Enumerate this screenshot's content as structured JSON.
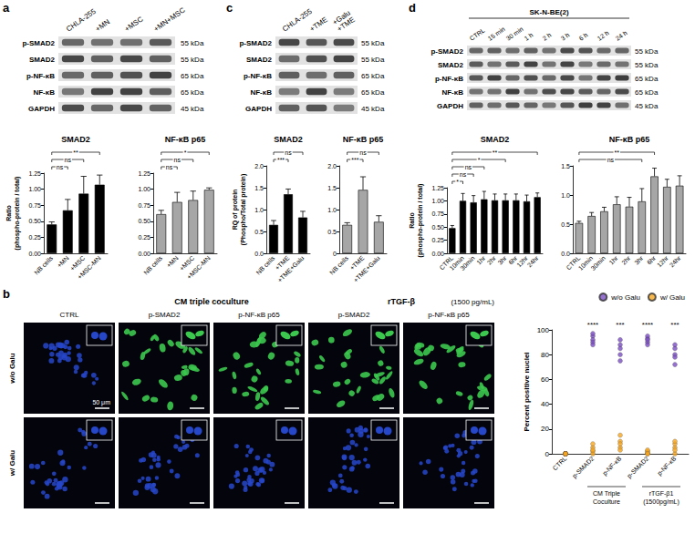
{
  "panel_letters": [
    "a",
    "b",
    "c",
    "d"
  ],
  "blots": [
    {
      "columns": [
        "CHLA-255",
        "+MN",
        "+MSC",
        "+MN+MSC"
      ],
      "rows": [
        {
          "label": "p-SMAD2",
          "size": "55 kDa"
        },
        {
          "label": "SMAD2",
          "size": "55 kDa"
        },
        {
          "label": "p-NF-κB",
          "size": "65 kDa"
        },
        {
          "label": "NF-κB",
          "size": "65 kDa"
        },
        {
          "label": "GAPDH",
          "size": "45 kDa"
        }
      ]
    },
    {
      "columns": [
        "CHLA-255",
        "+TME",
        "+TME\n+Galu"
      ],
      "rows": [
        {
          "label": "p-SMAD2",
          "size": "55 kDa"
        },
        {
          "label": "SMAD2",
          "size": "55 kDa"
        },
        {
          "label": "p-NF-κB",
          "size": "65 kDa"
        },
        {
          "label": "NF-κB",
          "size": "65 kDa"
        },
        {
          "label": "GAPDH",
          "size": "45 kDa"
        }
      ]
    },
    {
      "title": "SK-N-BE(2)",
      "columns": [
        "CTRL",
        "15 min",
        "30 min",
        "1 h",
        "2 h",
        "3 h",
        "6 h",
        "12 h",
        "24 h"
      ],
      "rows": [
        {
          "label": "p-SMAD2",
          "size": "55 kDa"
        },
        {
          "label": "SMAD2",
          "size": "55 kDa"
        },
        {
          "label": "p-NF-κB",
          "size": "65 kDa"
        },
        {
          "label": "NF-κB",
          "size": "65 kDa"
        },
        {
          "label": "GAPDH",
          "size": "45 kDa"
        }
      ]
    }
  ],
  "microscopy": {
    "control": "CTRL",
    "groups": [
      {
        "label": "CM triple coculture",
        "columns": [
          "p-SMAD2",
          "p-NF-κB p65"
        ]
      },
      {
        "label": "rTGF-β",
        "note": "(1500 pg/mL)",
        "columns": [
          "p-SMAD2",
          "p-NF-κB p65"
        ]
      }
    ],
    "rows": [
      "w/o Galu",
      "w/ Galu"
    ],
    "scale_bar": "50 μm"
  },
  "chart_data": [
    {
      "type": "bar",
      "title": "SMAD2",
      "ylabel": "Ratio\n(phospho-protein / total)",
      "categories": [
        "NB cells",
        "+MN",
        "+MSC",
        "+MSC-MN"
      ],
      "values": [
        0.45,
        0.67,
        0.93,
        1.07
      ],
      "errors": [
        0.04,
        0.17,
        0.27,
        0.15
      ],
      "color": "#000000",
      "grid": false,
      "ylim": [
        0,
        1.25
      ],
      "yticks": [
        {
          "value": 0,
          "label": "0.00"
        },
        0.25,
        {
          "value": 0.5,
          "label": "0.50"
        },
        0.75,
        {
          "value": 1,
          "label": "1.00"
        },
        1.25
      ],
      "annotations": [
        {
          "from": 0,
          "to": 1,
          "label": "ns"
        },
        {
          "from": 0,
          "to": 2,
          "label": "ns"
        },
        {
          "from": 0,
          "to": 3,
          "label": "**"
        }
      ]
    },
    {
      "type": "bar",
      "title": "NF-κB p65",
      "categories": [
        "NB cells",
        "+MN",
        "+MSC",
        "+MSC-MN"
      ],
      "values": [
        0.61,
        0.8,
        0.83,
        0.99
      ],
      "errors": [
        0.06,
        0.15,
        0.14,
        0.03
      ],
      "color": "#a6a6a6",
      "grid": false,
      "ylim": [
        0,
        1.25
      ],
      "yticks": [
        {
          "value": 0,
          "label": "0.00"
        },
        0.25,
        {
          "value": 0.5,
          "label": "0.50"
        },
        0.75,
        {
          "value": 1,
          "label": "1.00"
        },
        1.25
      ],
      "annotations": [
        {
          "from": 0,
          "to": 1,
          "label": "ns"
        },
        {
          "from": 0,
          "to": 2,
          "label": "ns"
        },
        {
          "from": 0,
          "to": 3,
          "label": "*"
        }
      ]
    },
    {
      "type": "bar",
      "title": "SMAD2",
      "ylabel": "RQ of protein\n(Phospho/Total protein)",
      "categories": [
        "NB cells",
        "+TME",
        "+TME+Galu"
      ],
      "values": [
        0.65,
        1.35,
        0.82
      ],
      "errors": [
        0.1,
        0.12,
        0.14
      ],
      "color": "#000000",
      "grid": false,
      "ylim": [
        0,
        2
      ],
      "yticks": [
        {
          "value": 0,
          "label": "0.0"
        },
        0.5,
        {
          "value": 1,
          "label": "1.0"
        },
        1.5,
        {
          "value": 2,
          "label": "2.0"
        }
      ],
      "annotations": [
        {
          "from": 0,
          "to": 1,
          "label": "***"
        },
        {
          "from": 0,
          "to": 2,
          "label": "ns"
        }
      ]
    },
    {
      "type": "bar",
      "title": "NF-κB p65",
      "categories": [
        "NB cells",
        "+TME",
        "+TME+Galu"
      ],
      "values": [
        0.65,
        1.45,
        0.72
      ],
      "errors": [
        0.05,
        0.3,
        0.14
      ],
      "color": "#a6a6a6",
      "grid": false,
      "ylim": [
        0,
        2
      ],
      "yticks": [
        0,
        0.5,
        {
          "value": 1,
          "label": "1.0"
        },
        1.5,
        {
          "value": 2,
          "label": "2.0"
        }
      ],
      "annotations": [
        {
          "from": 0,
          "to": 1,
          "label": "***"
        },
        {
          "from": 0,
          "to": 2,
          "label": "ns"
        }
      ]
    },
    {
      "type": "bar",
      "title": "SMAD2",
      "ylabel": "Ratio\n(phospho-protein / total)",
      "categories": [
        "CTRL",
        "10min",
        "30min",
        "1hr",
        "2hr",
        "3hr",
        "6hr",
        "12hr",
        "24hr"
      ],
      "values": [
        0.48,
        1.0,
        0.97,
        1.03,
        1.01,
        1.01,
        1.01,
        0.99,
        1.07
      ],
      "errors": [
        0.05,
        0.14,
        0.13,
        0.15,
        0.12,
        0.12,
        0.12,
        0.12,
        0.08
      ],
      "color": "#000000",
      "grid": false,
      "ylim": [
        0,
        1.25
      ],
      "yticks": [
        {
          "value": 0,
          "label": "0.00"
        },
        0.25,
        {
          "value": 0.5,
          "label": "0.50"
        },
        0.75,
        {
          "value": 1,
          "label": "1.00"
        },
        1.25
      ],
      "annotations": [
        {
          "from": 0,
          "to": 1,
          "label": "*"
        },
        {
          "from": 0,
          "to": 2,
          "label": "ns"
        },
        {
          "from": 0,
          "to": 3,
          "label": "ns"
        },
        {
          "from": 0,
          "to": 5,
          "label": "*"
        },
        {
          "from": 0,
          "to": 8,
          "label": "**"
        }
      ]
    },
    {
      "type": "bar",
      "title": "NF-κB p65",
      "categories": [
        "CTRL",
        "10min",
        "30min",
        "1hr",
        "2hr",
        "3hr",
        "6hr",
        "12hr",
        "24hr"
      ],
      "values": [
        0.52,
        0.64,
        0.72,
        0.84,
        0.8,
        0.89,
        1.32,
        1.14,
        1.16
      ],
      "errors": [
        0.03,
        0.06,
        0.07,
        0.13,
        0.16,
        0.22,
        0.14,
        0.13,
        0.17
      ],
      "color": "#a6a6a6",
      "grid": false,
      "ylim": [
        0,
        1.5
      ],
      "yticks": [
        {
          "value": 0,
          "label": "0.0"
        },
        0.5,
        {
          "value": 1,
          "label": "1.0"
        },
        1.5
      ],
      "annotations": [
        {
          "from": 0,
          "to": 5,
          "label": "ns"
        },
        {
          "from": 0,
          "to": 6,
          "label": "**"
        }
      ]
    },
    {
      "type": "scatter",
      "ylabel": "Percent positive nuclei",
      "categories": [
        "CTRL",
        "p-SMAD2",
        "p-NF-κB",
        "p-SMAD2",
        "p-NF-κB"
      ],
      "marker": "circle",
      "grid": false,
      "legend": "top-right",
      "ylim": [
        0,
        100
      ],
      "yticks": [
        0,
        20,
        40,
        60,
        80,
        100
      ],
      "series": [
        {
          "name": "w/o Galu",
          "color": "#7b4fc0",
          "values": [
            [
              0,
              0,
              0,
              0,
              0
            ],
            [
              95,
              92,
              90,
              97,
              88
            ],
            [
              88,
              85,
              80,
              92,
              75
            ],
            [
              93,
              90,
              95,
              88,
              92
            ],
            [
              85,
              80,
              78,
              72,
              88
            ]
          ]
        },
        {
          "name": "w/ Galu",
          "color": "#f5a623",
          "values": [
            [
              0,
              0,
              0,
              0,
              0
            ],
            [
              2,
              5,
              8,
              0,
              3
            ],
            [
              5,
              10,
              15,
              3,
              8
            ],
            [
              0,
              2,
              1,
              3,
              0
            ],
            [
              5,
              0,
              8,
              3,
              10
            ]
          ]
        }
      ],
      "annotations": [
        {
          "at": 1,
          "label": "****"
        },
        {
          "at": 2,
          "label": "***"
        },
        {
          "at": 3,
          "label": "****"
        },
        {
          "at": 4,
          "label": "***"
        }
      ],
      "groups": [
        {
          "label": "CM Triple Coculture",
          "from": 1,
          "to": 2
        },
        {
          "label": "rTGF-β1 (1500pg/mL)",
          "from": 3,
          "to": 4
        }
      ]
    }
  ]
}
